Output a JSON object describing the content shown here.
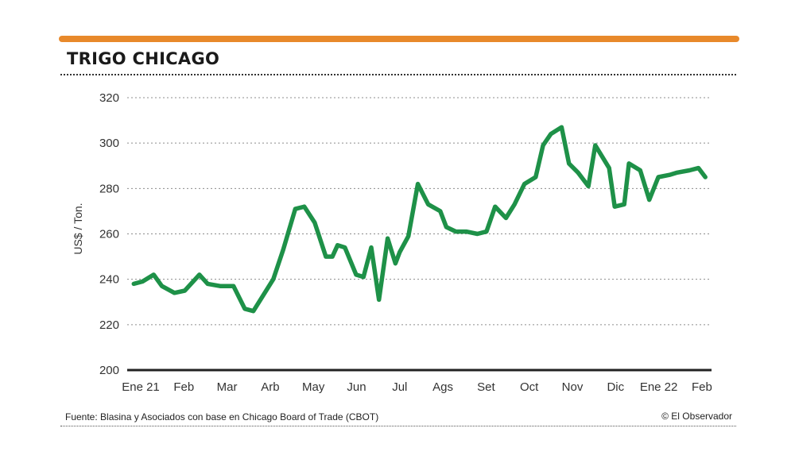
{
  "header": {
    "title": "TRIGO CHICAGO",
    "accent_color": "#e8892b"
  },
  "footer": {
    "source": "Fuente: Blasina y Asociados con base en Chicago Board of Trade (CBOT)",
    "credit": "© El Observador"
  },
  "chart_data": {
    "type": "line",
    "title": "TRIGO CHICAGO",
    "xlabel": "",
    "ylabel": "US$ / Ton.",
    "ylim": [
      200,
      320
    ],
    "yticks": [
      200,
      220,
      240,
      260,
      280,
      300,
      320
    ],
    "grid": true,
    "line_color": "#1e9148",
    "categories": [
      "Ene 21",
      "Feb",
      "Mar",
      "Arb",
      "May",
      "Jun",
      "Jul",
      "Ags",
      "Set",
      "Oct",
      "Nov",
      "Dic",
      "Ene 22",
      "Feb"
    ],
    "x_range": [
      -0.3,
      13.1
    ],
    "series": [
      {
        "name": "Trigo Chicago",
        "x": [
          -0.16,
          0.04,
          0.3,
          0.49,
          0.78,
          1.02,
          1.36,
          1.55,
          1.84,
          2.15,
          2.41,
          2.61,
          3.07,
          3.3,
          3.58,
          3.79,
          4.03,
          4.29,
          4.44,
          4.56,
          4.73,
          4.99,
          5.16,
          5.34,
          5.52,
          5.72,
          5.9,
          6.0,
          6.2,
          6.42,
          6.66,
          6.94,
          7.08,
          7.3,
          7.54,
          7.8,
          8.01,
          8.21,
          8.46,
          8.66,
          8.89,
          9.15,
          9.32,
          9.5,
          9.75,
          9.92,
          10.13,
          10.37,
          10.53,
          10.85,
          10.98,
          11.2,
          11.31,
          11.57,
          11.78,
          11.99,
          12.25,
          12.43,
          12.71,
          12.92,
          13.08
        ],
        "y": [
          238,
          239,
          242,
          237,
          234,
          235,
          242,
          238,
          237,
          237,
          227,
          226,
          240,
          253,
          271,
          272,
          265,
          250,
          250,
          255,
          254,
          242,
          241,
          254,
          231,
          258,
          247,
          252,
          259,
          282,
          273,
          270,
          263,
          261,
          261,
          260,
          261,
          272,
          267,
          273,
          282,
          285,
          299,
          304,
          307,
          291,
          287,
          281,
          299,
          289,
          272,
          273,
          291,
          288,
          275,
          285,
          286,
          287,
          288,
          289,
          285
        ]
      }
    ]
  }
}
